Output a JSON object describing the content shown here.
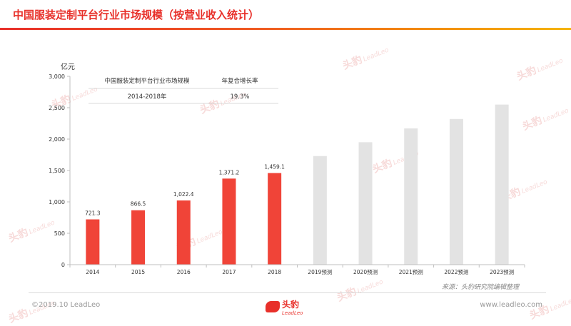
{
  "header": {
    "title": "中国服装定制平台行业市场规模（按营业收入统计）"
  },
  "unit_label": "亿元",
  "summary_table": {
    "headers": [
      "中国服装定制平台行业市场规模",
      "年复合增长率"
    ],
    "row": [
      "2014-2018年",
      "19.3%"
    ]
  },
  "chart_data": {
    "type": "bar",
    "categories": [
      "2014",
      "2015",
      "2016",
      "2017",
      "2018",
      "2019预测",
      "2020预测",
      "2021预测",
      "2022预测",
      "2023预测"
    ],
    "values": [
      721.3,
      866.5,
      1022.4,
      1371.2,
      1459.1,
      1730,
      1950,
      2170,
      2320,
      2550
    ],
    "value_labels": [
      "721.3",
      "866.5",
      "1,022.4",
      "1,371.2",
      "1,459.1",
      "",
      "",
      "",
      "",
      ""
    ],
    "forecast": [
      false,
      false,
      false,
      false,
      false,
      true,
      true,
      true,
      true,
      true
    ],
    "yticks": [
      "0",
      "500",
      "1,000",
      "1,500",
      "2,000",
      "2,500",
      "3,000"
    ],
    "ylim": [
      0,
      3000
    ],
    "colors": {
      "actual": "#f04438",
      "forecast": "#e3e3e3"
    },
    "grid": false
  },
  "source": "来源：头豹研究院编辑整理",
  "footer": {
    "copyright": "©2019.10 LeadLeo",
    "brand": "头豹",
    "brand_sub": "LeadLeo",
    "website": "www.leadleo.com"
  },
  "watermark": {
    "text": "头豹",
    "sub": "LeadLeo"
  }
}
